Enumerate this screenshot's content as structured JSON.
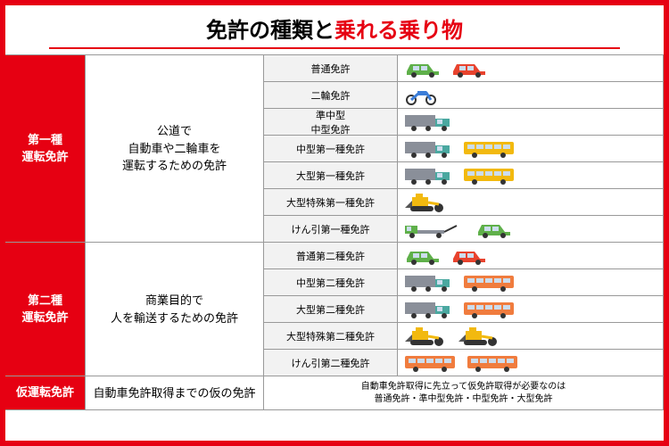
{
  "title_prefix": "免許の種類と",
  "title_accent": "乗れる乗り物",
  "colors": {
    "accent": "#e60012",
    "border": "#999999",
    "lic_bg": "#f2f2f2",
    "green": "#5fb04a",
    "red": "#e8432e",
    "blue": "#3b7dd8",
    "teal": "#4aa8a0",
    "yellow": "#f2b90f",
    "orange": "#f07c3e",
    "gray": "#8a8f99",
    "dark": "#555"
  },
  "sections": [
    {
      "category": "第一種\n運転免許",
      "description": "公道で\n自動車や二輪車を\n運転するための免許",
      "rows": [
        {
          "license": "普通免許",
          "vehicles": [
            {
              "t": "car",
              "c": "green"
            },
            {
              "t": "car",
              "c": "red"
            }
          ]
        },
        {
          "license": "二輪免許",
          "vehicles": [
            {
              "t": "moto",
              "c": "blue"
            }
          ]
        },
        {
          "license": "準中型\n中型免許",
          "vehicles": [
            {
              "t": "truck",
              "c": "teal"
            }
          ]
        },
        {
          "license": "中型第一種免許",
          "vehicles": [
            {
              "t": "truck",
              "c": "teal"
            },
            {
              "t": "bus",
              "c": "yellow"
            }
          ]
        },
        {
          "license": "大型第一種免許",
          "vehicles": [
            {
              "t": "truck",
              "c": "teal"
            },
            {
              "t": "bus",
              "c": "yellow"
            }
          ]
        },
        {
          "license": "大型特殊第一種免許",
          "vehicles": [
            {
              "t": "dozer",
              "c": "yellow"
            }
          ]
        },
        {
          "license": "けん引第一種免許",
          "vehicles": [
            {
              "t": "tow",
              "c": "green"
            },
            {
              "t": "car",
              "c": "green"
            }
          ]
        }
      ]
    },
    {
      "category": "第二種\n運転免許",
      "description": "商業目的で\n人を輸送するための免許",
      "rows": [
        {
          "license": "普通第二種免許",
          "vehicles": [
            {
              "t": "car",
              "c": "green"
            },
            {
              "t": "car",
              "c": "red"
            }
          ]
        },
        {
          "license": "中型第二種免許",
          "vehicles": [
            {
              "t": "truck",
              "c": "teal"
            },
            {
              "t": "bus",
              "c": "orange"
            }
          ]
        },
        {
          "license": "大型第二種免許",
          "vehicles": [
            {
              "t": "truck",
              "c": "teal"
            },
            {
              "t": "bus",
              "c": "orange"
            }
          ]
        },
        {
          "license": "大型特殊第二種免許",
          "vehicles": [
            {
              "t": "dozer",
              "c": "yellow"
            },
            {
              "t": "dozer",
              "c": "yellow"
            }
          ]
        },
        {
          "license": "けん引第二種免許",
          "vehicles": [
            {
              "t": "bus",
              "c": "orange"
            },
            {
              "t": "bus",
              "c": "orange"
            }
          ]
        }
      ]
    }
  ],
  "provisional": {
    "category": "仮運転免許",
    "description": "自動車免許取得までの仮の免許",
    "note_l1": "自動車免許取得に先立って仮免許取得が必要なのは",
    "note_l2": "普通免許・準中型免許・中型免許・大型免許"
  }
}
